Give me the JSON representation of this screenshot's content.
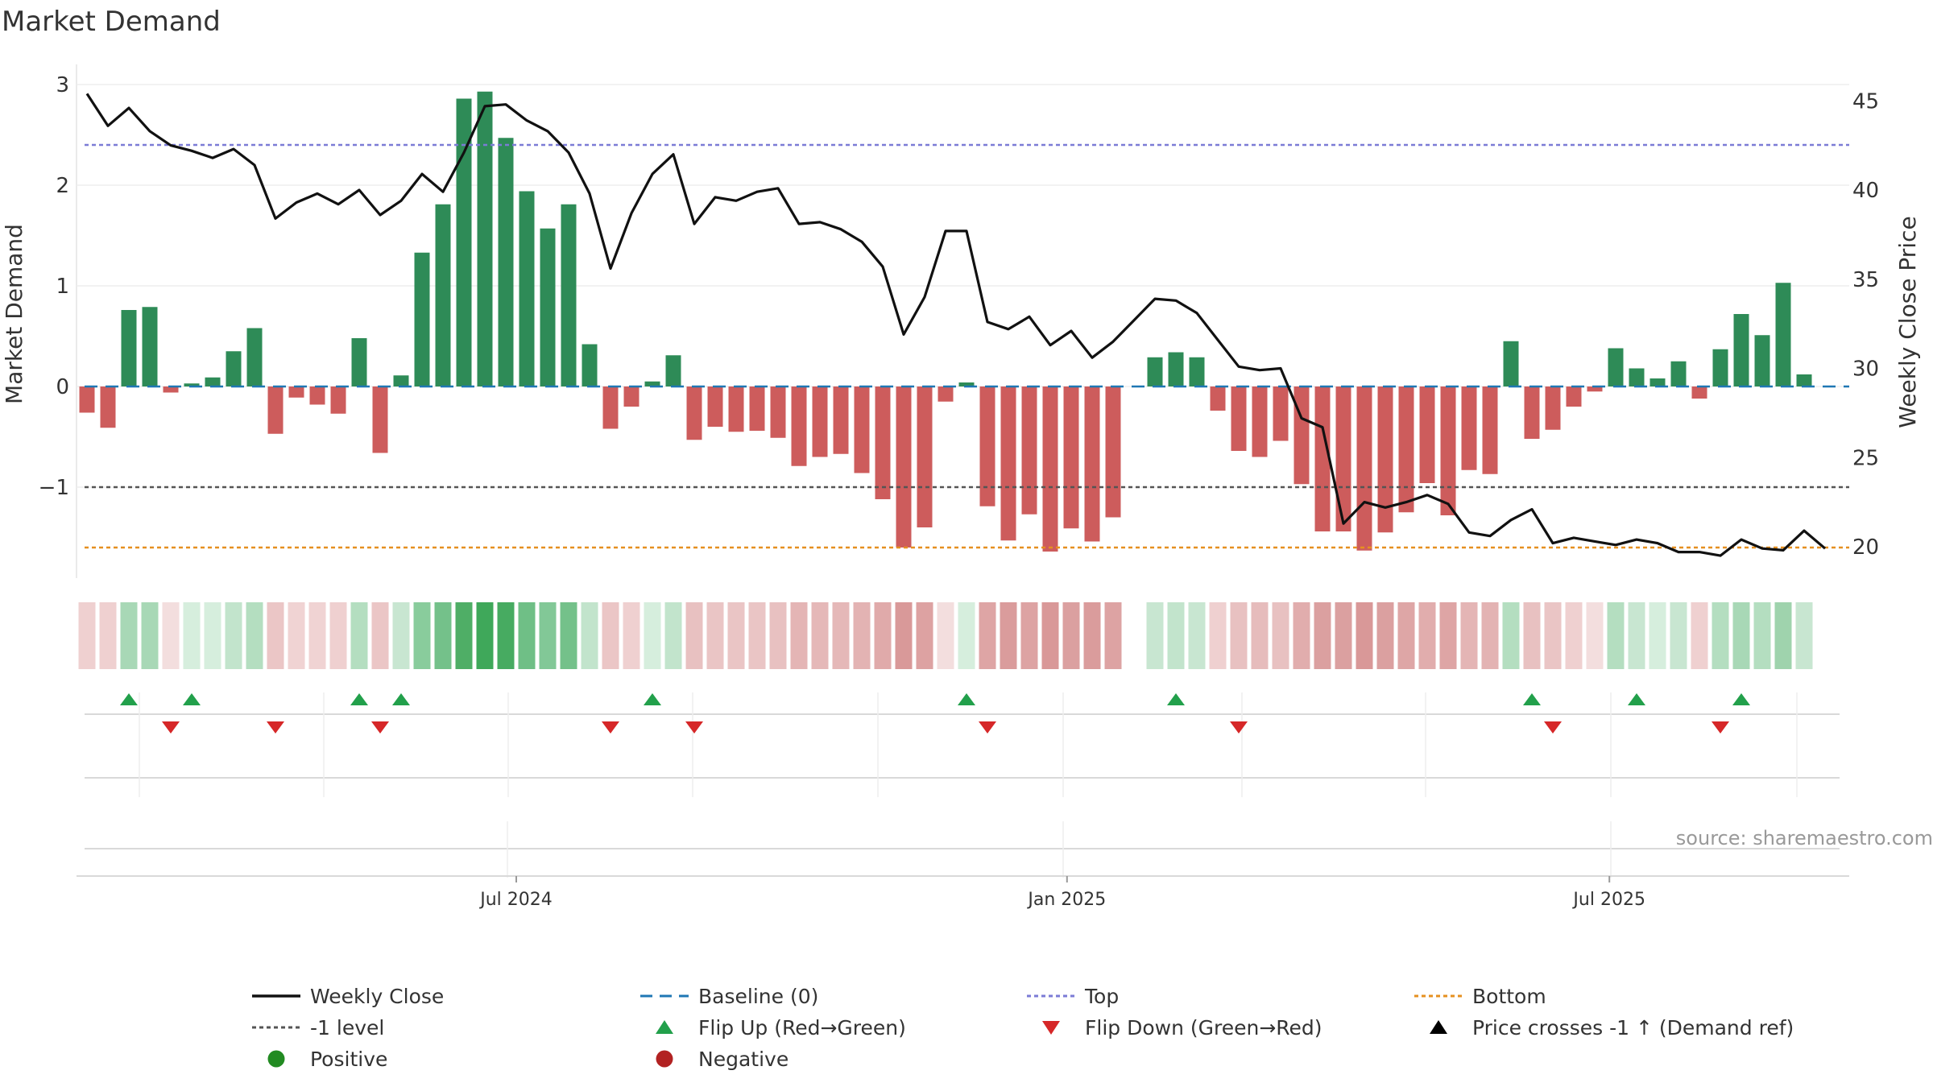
{
  "chart_data": {
    "type": "bar",
    "title": "Market Demand",
    "ylabel": "Market Demand",
    "y2label": "Weekly Close Price",
    "ylim": [
      -1.95,
      3.05
    ],
    "y2lim": [
      18.8,
      46.4
    ],
    "yticks": [
      3,
      2,
      1,
      0,
      -1
    ],
    "ytick_labels": [
      "3",
      "2",
      "1",
      "0",
      "−1"
    ],
    "y2ticks": [
      45,
      40,
      35,
      30,
      25,
      20
    ],
    "y2tick_labels": [
      "45",
      "40",
      "35",
      "30",
      "25",
      "20"
    ],
    "x_axis": {
      "ticks": [
        {
          "label": "Jul 2024",
          "index": 20.5
        },
        {
          "label": "Jan 2025",
          "index": 46.8
        },
        {
          "label": "Jul 2025",
          "index": 72.7
        }
      ]
    },
    "levels": {
      "top": 2.4,
      "bottom": -1.6,
      "minus_one": -1.0,
      "baseline": 0
    },
    "demand": [
      -0.26,
      -0.41,
      0.76,
      0.79,
      -0.06,
      0.03,
      0.09,
      0.35,
      0.58,
      -0.47,
      -0.11,
      -0.18,
      -0.27,
      0.48,
      -0.66,
      0.11,
      1.33,
      1.81,
      2.86,
      2.93,
      2.47,
      1.94,
      1.57,
      1.81,
      0.42,
      -0.42,
      -0.2,
      0.05,
      0.31,
      -0.53,
      -0.4,
      -0.45,
      -0.44,
      -0.51,
      -0.79,
      -0.7,
      -0.67,
      -0.86,
      -1.12,
      -1.6,
      -1.4,
      -0.15,
      0.04,
      -1.19,
      -1.53,
      -1.27,
      -1.64,
      -1.41,
      -1.54,
      -1.3,
      0.0,
      0.29,
      0.34,
      0.29,
      -0.24,
      -0.64,
      -0.7,
      -0.54,
      -0.97,
      -1.44,
      -1.44,
      -1.63,
      -1.45,
      -1.25,
      -0.96,
      -1.28,
      -0.83,
      -0.87,
      0.45,
      -0.52,
      -0.43,
      -0.2,
      -0.05,
      0.38,
      0.18,
      0.08,
      0.25,
      -0.12,
      0.37,
      0.72,
      0.51,
      1.03,
      0.12
    ],
    "price": [
      45.4,
      43.6,
      44.6,
      43.3,
      42.5,
      42.2,
      41.8,
      42.3,
      41.4,
      38.4,
      39.3,
      39.8,
      39.2,
      40.0,
      38.6,
      39.4,
      40.9,
      39.9,
      42.1,
      44.7,
      44.8,
      43.9,
      43.3,
      42.1,
      39.8,
      35.6,
      38.7,
      40.9,
      42.0,
      38.1,
      39.6,
      39.4,
      39.9,
      40.1,
      38.1,
      38.2,
      37.8,
      37.1,
      35.7,
      31.9,
      34.0,
      37.7,
      37.7,
      32.6,
      32.2,
      32.9,
      31.3,
      32.1,
      30.6,
      31.5,
      32.7,
      33.9,
      33.8,
      33.1,
      31.6,
      30.1,
      29.9,
      30.0,
      27.2,
      26.7,
      21.3,
      22.5,
      22.2,
      22.5,
      22.9,
      22.4,
      20.8,
      20.6,
      21.5,
      22.1,
      20.2,
      20.5,
      20.3,
      20.1,
      20.4,
      20.2,
      19.7,
      19.7,
      19.5,
      20.4,
      19.9,
      19.8,
      20.9,
      19.9
    ],
    "heat_strip_colors": [
      "#efd0d0",
      "#efd0d0",
      "#a8d8b6",
      "#a8d8b6",
      "#f3dede",
      "#d6eedd",
      "#d6eedd",
      "#c2e4cc",
      "#b4dec0",
      "#ebc6c6",
      "#f0d3d3",
      "#f0d3d3",
      "#efd0d0",
      "#b4dec0",
      "#ebc6c6",
      "#c8e6d1",
      "#89cc9c",
      "#74c18a",
      "#4fae66",
      "#3fa85a",
      "#47ab61",
      "#6fbf86",
      "#82c897",
      "#74c18a",
      "#c2e4cc",
      "#ebc6c6",
      "#efd0d0",
      "#d6eedd",
      "#c2e4cc",
      "#e8c1c1",
      "#eac5c5",
      "#eac5c5",
      "#eac5c5",
      "#e8c1c1",
      "#e4b5b5",
      "#e5b8b8",
      "#e5b8b8",
      "#e3b3b3",
      "#e0aaaa",
      "#d99999",
      "#dda2a2",
      "#f3dede",
      "#d6eedd",
      "#dea5a5",
      "#da9c9c",
      "#dda3a3",
      "#d99898",
      "#dba0a0",
      "#da9c9c",
      "#dda3a3",
      "#ffffff",
      "#c8e6d1",
      "#c2e4cc",
      "#c8e6d1",
      "#efd0d0",
      "#e8c1c1",
      "#e6bcbc",
      "#e8c1c1",
      "#e1adad",
      "#dba0a0",
      "#dba0a0",
      "#d99898",
      "#dba0a0",
      "#dea6a6",
      "#e1adad",
      "#dea5a5",
      "#e4b5b5",
      "#e3b3b3",
      "#b4dec0",
      "#e8c1c1",
      "#eac5c5",
      "#efd0d0",
      "#f3dede",
      "#b4dec0",
      "#c8e6d1",
      "#d6eedd",
      "#c8e6d1",
      "#efd0d0",
      "#b4dec0",
      "#a8d8b6",
      "#b4dec0",
      "#9fd3ad",
      "#c8e6d1"
    ],
    "flip_up_indices": [
      2,
      5,
      13,
      15,
      27,
      42,
      52,
      69,
      74,
      79
    ],
    "flip_down_indices": [
      4,
      9,
      14,
      25,
      29,
      43,
      55,
      70,
      78
    ],
    "source": "source: sharemaestro.com",
    "colors": {
      "positive": "#2e8b57",
      "negative": "#cd5c5c",
      "price": "#111111",
      "top": "#7b7bd6",
      "bottom": "#e69020",
      "minus_one": "#555555",
      "baseline": "#1f77b4",
      "flip_up": "#22a04b",
      "flip_down": "#d62728"
    },
    "legend": [
      {
        "label": "Weekly Close",
        "kind": "solid-line",
        "color": "#111111"
      },
      {
        "label": "Baseline (0)",
        "kind": "dash-line",
        "color": "#1f77b4"
      },
      {
        "label": "Top",
        "kind": "dot-line",
        "color": "#7b7bd6"
      },
      {
        "label": "Bottom",
        "kind": "dot-line",
        "color": "#e69020"
      },
      {
        "label": "-1 level",
        "kind": "dot-line",
        "color": "#555555"
      },
      {
        "label": "Flip Up (Red→Green)",
        "kind": "tri-up",
        "color": "#22a04b"
      },
      {
        "label": "Flip Down (Green→Red)",
        "kind": "tri-down",
        "color": "#d62728"
      },
      {
        "label": "Price crosses -1 ↑ (Demand ref)",
        "kind": "tri-up",
        "color": "#000000"
      },
      {
        "label": "Positive",
        "kind": "circle",
        "color": "#228b22"
      },
      {
        "label": "Negative",
        "kind": "circle",
        "color": "#b22222"
      }
    ]
  }
}
